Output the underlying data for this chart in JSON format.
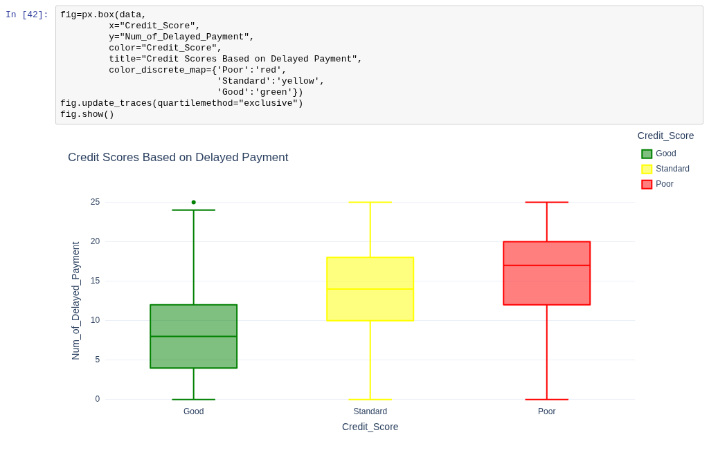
{
  "chart_data": {
    "type": "box",
    "title": "Credit Scores Based on Delayed Payment",
    "xlabel": "Credit_Score",
    "ylabel": "Num_of_Delayed_Payment",
    "legend_title": "Credit_Score",
    "legend": "top right",
    "grid": "y",
    "marker": "circle",
    "categories": [
      "Good",
      "Standard",
      "Poor"
    ],
    "ylim": [
      0,
      25
    ],
    "yticks": [
      0,
      5,
      10,
      15,
      20,
      25
    ],
    "series": [
      {
        "name": "Good",
        "color": "#008000",
        "boxes": [
          {
            "low": 0,
            "q1": 4,
            "median": 8,
            "q3": 12,
            "high": 24,
            "outliers": [
              25
            ]
          },
          null,
          null
        ]
      },
      {
        "name": "Standard",
        "color": "#ffff00",
        "boxes": [
          null,
          {
            "low": 0,
            "q1": 10,
            "median": 14,
            "q3": 18,
            "high": 25
          },
          null
        ]
      },
      {
        "name": "Poor",
        "color": "#ff0000",
        "boxes": [
          null,
          null,
          {
            "low": 0,
            "q1": 12,
            "median": 17,
            "q3": 20,
            "high": 25
          }
        ]
      }
    ],
    "annotations": [
      "In [42]:",
      "fig=px.box(data,",
      "         x=\"Credit_Score\",",
      "         y=\"Num_of_Delayed_Payment\",",
      "         color=\"Credit_Score\",",
      "         title=\"Credit Scores Based on Delayed Payment\",",
      "         color_discrete_map={'Poor':'red',",
      "                             'Standard':'yellow',",
      "                             'Good':'green'})",
      "fig.update_traces(quartilemethod=\"exclusive\")",
      "fig.show()"
    ]
  }
}
